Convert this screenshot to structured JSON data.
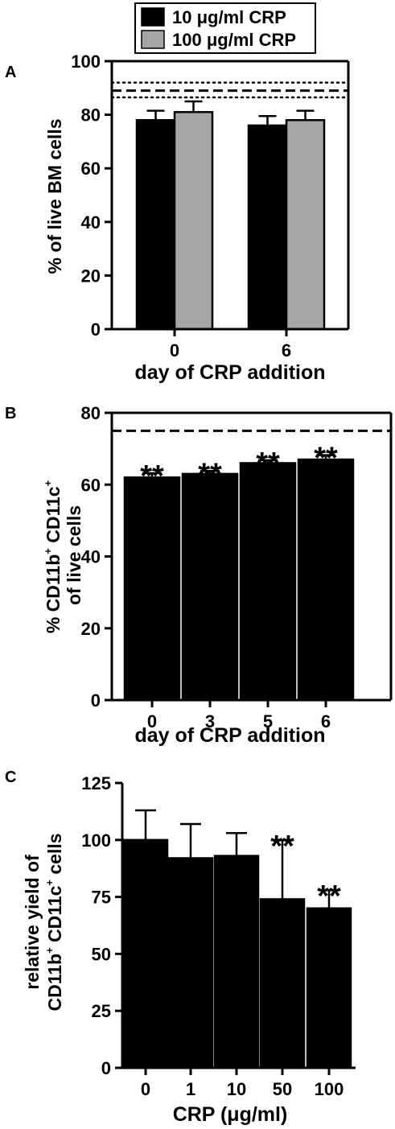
{
  "legend": {
    "items": [
      {
        "label": "10 μg/ml CRP",
        "color": "#000000"
      },
      {
        "label": "100 μg/ml CRP",
        "color": "#a6a6a6"
      }
    ]
  },
  "chart_data": [
    {
      "panel": "A",
      "type": "bar",
      "xlabel": "day of CRP addition",
      "ylabel": "% of live BM cells",
      "ylim": [
        0,
        100
      ],
      "yticks": [
        0,
        20,
        40,
        60,
        80,
        100
      ],
      "categories": [
        "0",
        "6"
      ],
      "series": [
        {
          "name": "10 μg/ml CRP",
          "color": "#000000",
          "values": [
            78,
            76
          ],
          "errors": [
            3.5,
            3.5
          ]
        },
        {
          "name": "100 μg/ml CRP",
          "color": "#a6a6a6",
          "values": [
            81,
            78
          ],
          "errors": [
            4,
            3.5
          ]
        }
      ],
      "reference_lines": [
        {
          "value": 89,
          "style": "dashed"
        },
        {
          "value": 92,
          "style": "dotted"
        },
        {
          "value": 86.5,
          "style": "dotted"
        }
      ]
    },
    {
      "panel": "B",
      "type": "bar",
      "xlabel": "day of CRP addition",
      "ylabel_parts": {
        "pre": "% CD11b",
        "sup1": "+",
        "mid": " CD11c",
        "sup2": "+",
        "line2": "of live cells"
      },
      "ylim": [
        0,
        80
      ],
      "yticks": [
        0,
        20,
        40,
        60,
        80
      ],
      "categories": [
        "0",
        "3",
        "5",
        "6"
      ],
      "values": [
        62,
        63,
        66,
        67
      ],
      "errors": [
        1.2,
        0.8,
        0.8,
        1.2
      ],
      "significance": [
        "**",
        "**",
        "**",
        "**"
      ],
      "reference_lines": [
        {
          "value": 75,
          "style": "dashed"
        }
      ]
    },
    {
      "panel": "C",
      "type": "bar",
      "xlabel": "CRP (μg/ml)",
      "ylabel_parts": {
        "line1": "relative yield of",
        "pre": "CD11b",
        "sup1": "+",
        "mid": " CD11c",
        "sup2": "+",
        "post": " cells"
      },
      "ylim": [
        0,
        125
      ],
      "yticks": [
        0,
        25,
        50,
        75,
        100,
        125
      ],
      "categories": [
        "0",
        "1",
        "10",
        "50",
        "100"
      ],
      "values": [
        100,
        92,
        93,
        74,
        70
      ],
      "errors": [
        13,
        15,
        10,
        26,
        8
      ],
      "significance": [
        "",
        "",
        "",
        "**",
        "**"
      ]
    }
  ]
}
